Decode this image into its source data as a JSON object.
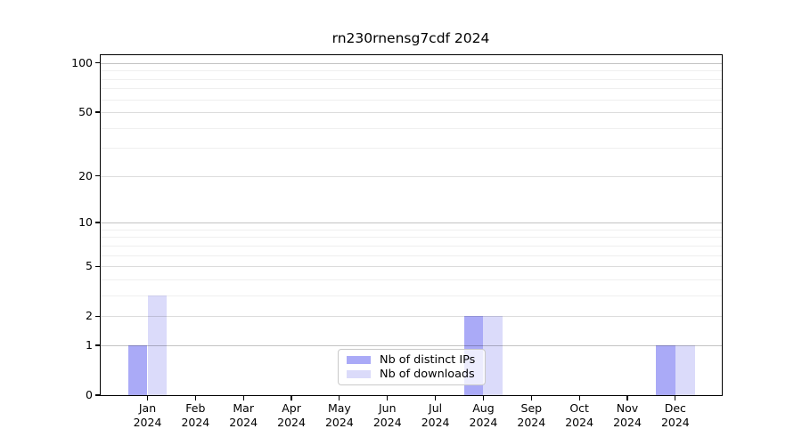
{
  "chart_data": {
    "type": "bar",
    "title": "rn230rnensg7cdf 2024",
    "categories": [
      "Jan",
      "Feb",
      "Mar",
      "Apr",
      "May",
      "Jun",
      "Jul",
      "Aug",
      "Sep",
      "Oct",
      "Nov",
      "Dec"
    ],
    "year_label": "2024",
    "series": [
      {
        "name": "Nb of distinct IPs",
        "color": "#aaaaf7",
        "values": [
          1,
          0,
          0,
          0,
          0,
          0,
          0,
          2,
          0,
          0,
          0,
          1
        ]
      },
      {
        "name": "Nb of downloads",
        "color": "#dbdbfa",
        "values": [
          3,
          0,
          0,
          0,
          0,
          0,
          0,
          2,
          0,
          0,
          0,
          1
        ]
      }
    ],
    "yscale": "log1p",
    "yticks": [
      0,
      1,
      2,
      5,
      10,
      20,
      50,
      100
    ],
    "minor_yticks": [
      3,
      4,
      6,
      7,
      8,
      9,
      30,
      40,
      60,
      70,
      80,
      90
    ],
    "ylim": [
      0,
      113
    ],
    "grid": "horizontal",
    "legend_position": "lower-center"
  },
  "colors": {
    "axis": "#000000",
    "grid_decade": "#c3c3c3",
    "grid_mid": "#dcdcdc",
    "grid_minor": "#efefef",
    "legend_border": "#c9c9c9"
  }
}
